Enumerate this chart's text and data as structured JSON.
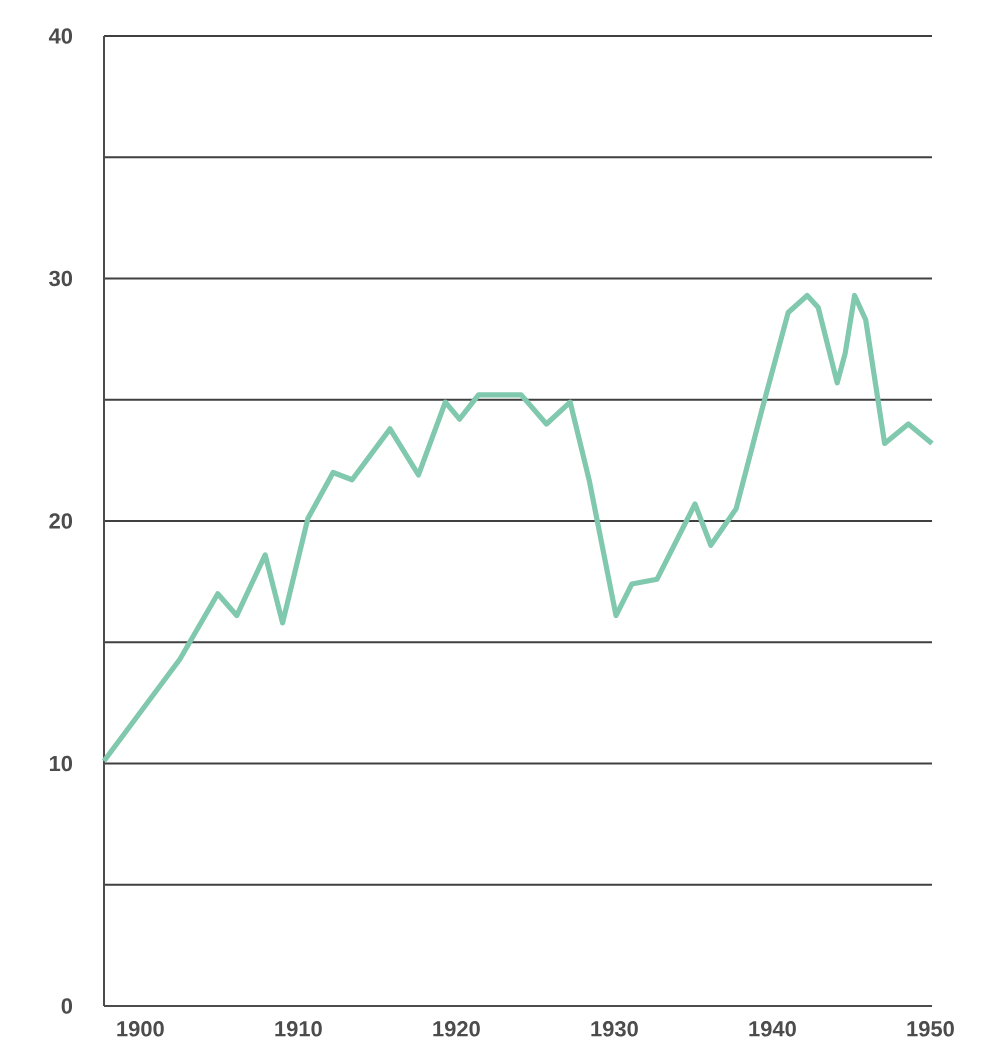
{
  "chart_data": {
    "type": "line",
    "x": [
      1897.7,
      1902.5,
      1904.9,
      1906.1,
      1907.9,
      1909.0,
      1910.6,
      1912.2,
      1913.4,
      1915.8,
      1917.6,
      1919.3,
      1920.2,
      1921.4,
      1924.1,
      1925.7,
      1927.2,
      1928.4,
      1930.1,
      1931.1,
      1932.7,
      1935.1,
      1936.1,
      1937.7,
      1939.3,
      1941.0,
      1942.2,
      1942.9,
      1944.1,
      1944.6,
      1945.2,
      1945.9,
      1947.1,
      1948.6,
      1950.1
    ],
    "series": [
      {
        "color": "#80c8ae",
        "values": [
          10.1,
          14.3,
          17.0,
          16.1,
          18.6,
          15.8,
          20.1,
          22.0,
          21.7,
          23.8,
          21.9,
          24.9,
          24.2,
          25.2,
          25.2,
          24.0,
          24.9,
          21.7,
          16.1,
          17.4,
          17.6,
          20.7,
          19.0,
          20.5,
          24.5,
          28.6,
          29.3,
          28.8,
          25.7,
          26.9,
          29.3,
          28.3,
          23.2,
          24.0,
          23.2
        ]
      }
    ],
    "xlim": [
      1897.7,
      1950.1
    ],
    "ylim": [
      0,
      40
    ],
    "xticks": [
      1900,
      1910,
      1920,
      1930,
      1940,
      1950
    ],
    "yticks": [
      0,
      {
        "value": 5,
        "label": null
      },
      10,
      {
        "value": 15,
        "label": null
      },
      20,
      {
        "value": 25,
        "label": null
      },
      30,
      {
        "value": 35,
        "label": null
      },
      40
    ],
    "grid": "y",
    "line_style": "solid",
    "marker": "none"
  }
}
